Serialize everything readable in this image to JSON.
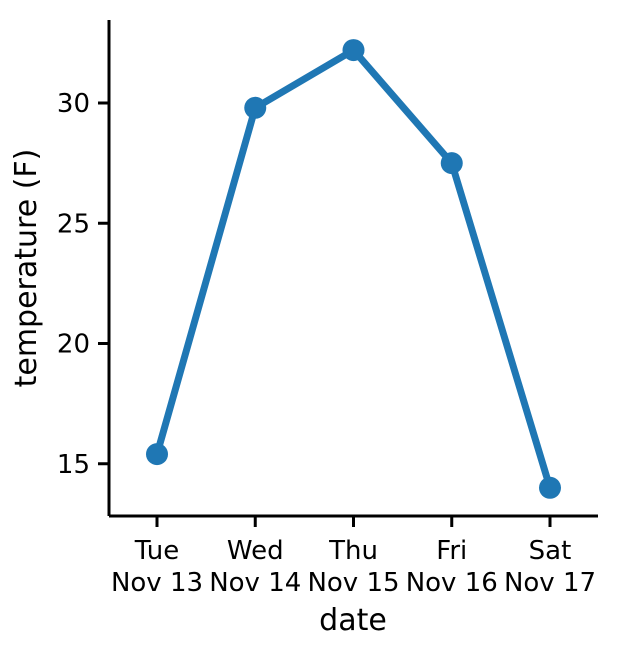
{
  "chart_data": {
    "type": "line",
    "title": "",
    "xlabel": "date",
    "ylabel": "temperature (F)",
    "categories": [
      [
        "Tue",
        "Nov 13"
      ],
      [
        "Wed",
        "Nov 14"
      ],
      [
        "Thu",
        "Nov 15"
      ],
      [
        "Fri",
        "Nov 16"
      ],
      [
        "Sat",
        "Nov 17"
      ]
    ],
    "series": [
      {
        "values": [
          15.4,
          29.8,
          32.2,
          27.5,
          14.0
        ],
        "color": "#1f77b4"
      }
    ],
    "yticks": [
      15,
      20,
      25,
      30
    ],
    "ylim": [
      12.9,
      33.4
    ],
    "grid": false,
    "legend": "none"
  }
}
